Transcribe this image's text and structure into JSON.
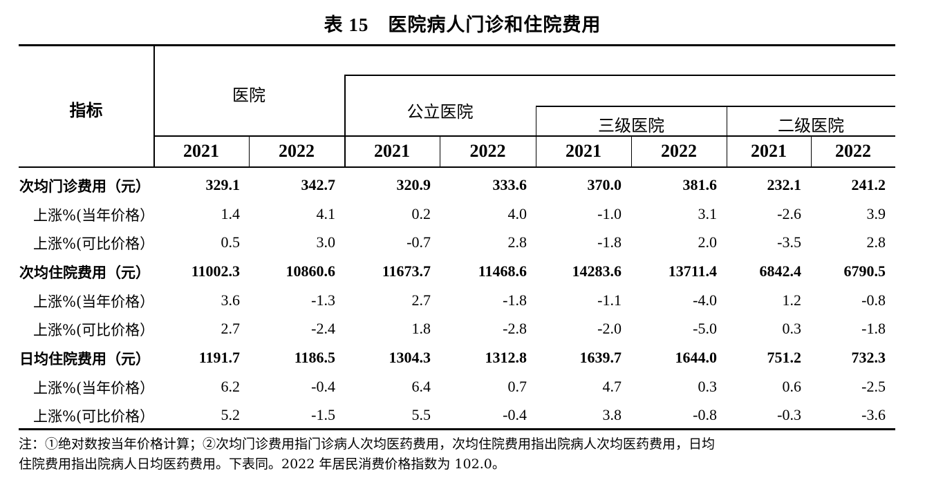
{
  "title": {
    "number": "表 15",
    "text": "医院病人门诊和住院费用"
  },
  "header": {
    "indicator": "指标",
    "hospital": "医院",
    "public_hospital": "公立医院",
    "level3": "三级医院",
    "level2": "二级医院",
    "years": [
      "2021",
      "2022",
      "2021",
      "2022",
      "2021",
      "2022",
      "2021",
      "2022"
    ]
  },
  "rows": [
    {
      "label": "次均门诊费用（元）",
      "main": true,
      "values": [
        "329.1",
        "342.7",
        "320.9",
        "333.6",
        "370.0",
        "381.6",
        "232.1",
        "241.2"
      ]
    },
    {
      "label": "上涨%(当年价格）",
      "main": false,
      "values": [
        "1.4",
        "4.1",
        "0.2",
        "4.0",
        "-1.0",
        "3.1",
        "-2.6",
        "3.9"
      ]
    },
    {
      "label": "上涨%(可比价格）",
      "main": false,
      "values": [
        "0.5",
        "3.0",
        "-0.7",
        "2.8",
        "-1.8",
        "2.0",
        "-3.5",
        "2.8"
      ]
    },
    {
      "label": "次均住院费用（元）",
      "main": true,
      "values": [
        "11002.3",
        "10860.6",
        "11673.7",
        "11468.6",
        "14283.6",
        "13711.4",
        "6842.4",
        "6790.5"
      ]
    },
    {
      "label": "上涨%(当年价格）",
      "main": false,
      "values": [
        "3.6",
        "-1.3",
        "2.7",
        "-1.8",
        "-1.1",
        "-4.0",
        "1.2",
        "-0.8"
      ]
    },
    {
      "label": "上涨%(可比价格）",
      "main": false,
      "values": [
        "2.7",
        "-2.4",
        "1.8",
        "-2.8",
        "-2.0",
        "-5.0",
        "0.3",
        "-1.8"
      ]
    },
    {
      "label": "日均住院费用（元）",
      "main": true,
      "values": [
        "1191.7",
        "1186.5",
        "1304.3",
        "1312.8",
        "1639.7",
        "1644.0",
        "751.2",
        "732.3"
      ]
    },
    {
      "label": "上涨%(当年价格）",
      "main": false,
      "values": [
        "6.2",
        "-0.4",
        "6.4",
        "0.7",
        "4.7",
        "0.3",
        "0.6",
        "-2.5"
      ]
    },
    {
      "label": "上涨%(可比价格）",
      "main": false,
      "values": [
        "5.2",
        "-1.5",
        "5.5",
        "-0.4",
        "3.8",
        "-0.8",
        "-0.3",
        "-3.6"
      ]
    }
  ],
  "note": {
    "line1": "注：①绝对数按当年价格计算；②次均门诊费用指门诊病人次均医药费用，次均住院费用指出院病人次均医药费用，日均",
    "line2": "住院费用指出院病人日均医药费用。下表同。2022 年居民消费价格指数为 102.0。"
  }
}
